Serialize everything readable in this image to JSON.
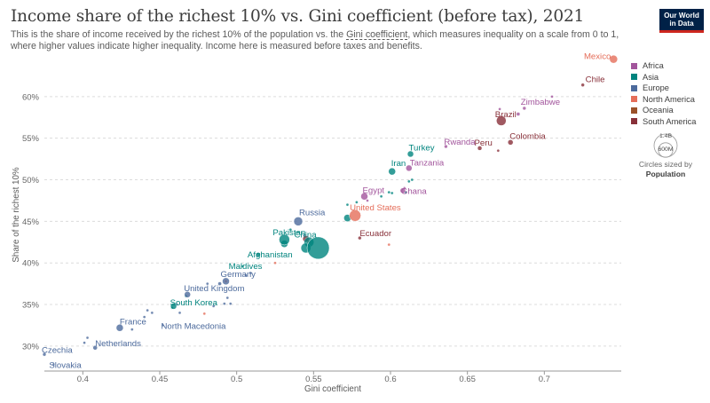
{
  "header": {
    "title": "Income share of the richest 10% vs. Gini coefficient (before tax), 2021",
    "subtitle_1": "This is the share of income received by the richest 10% of the population vs. the ",
    "subtitle_link": "Gini coefficient",
    "subtitle_2": ", which measures inequality on a scale from 0 to 1, where higher values indicate higher inequality. Income here is measured before taxes and benefits."
  },
  "logo": {
    "line1": "Our World",
    "line2": "in Data"
  },
  "legend": {
    "items": [
      {
        "label": "Africa",
        "color": "#a2559c"
      },
      {
        "label": "Asia",
        "color": "#00847e"
      },
      {
        "label": "Europe",
        "color": "#4c6a9c"
      },
      {
        "label": "North America",
        "color": "#e56e5a"
      },
      {
        "label": "Oceania",
        "color": "#9a5129"
      },
      {
        "label": "South America",
        "color": "#883039"
      }
    ],
    "size_big": "1.4B",
    "size_small": "600M",
    "size_note": "Circles sized by",
    "size_var": "Population"
  },
  "chart_data": {
    "type": "scatter",
    "xlabel": "Gini coefficient",
    "ylabel": "Share of the richest 10%",
    "xlim": [
      0.375,
      0.75
    ],
    "ylim": [
      27,
      65
    ],
    "x_ticks": [
      0.4,
      0.45,
      0.5,
      0.55,
      0.6,
      0.65,
      0.7
    ],
    "x_tick_labels": [
      "0.4",
      "0.45",
      "0.5",
      "0.55",
      "0.6",
      "0.65",
      "0.7"
    ],
    "y_ticks": [
      30,
      35,
      40,
      45,
      50,
      55,
      60
    ],
    "y_tick_labels": [
      "30%",
      "35%",
      "40%",
      "45%",
      "50%",
      "55%",
      "60%"
    ],
    "grid": "horizontal-dashed",
    "legend_placement": "right",
    "colors": {
      "Africa": "#a2559c",
      "Asia": "#00847e",
      "Europe": "#4c6a9c",
      "North America": "#e56e5a",
      "Oceania": "#9a5129",
      "South America": "#883039"
    },
    "labeled_points": [
      {
        "name": "Mexico",
        "region": "North America",
        "x": 0.745,
        "y": 64.5,
        "size": 4.5
      },
      {
        "name": "Chile",
        "region": "South America",
        "x": 0.725,
        "y": 61.4,
        "size": 2
      },
      {
        "name": "Zimbabwe",
        "region": "Africa",
        "x": 0.687,
        "y": 58.6,
        "size": 2
      },
      {
        "name": "Brazil",
        "region": "South America",
        "x": 0.672,
        "y": 57.1,
        "size": 5.5
      },
      {
        "name": "Colombia",
        "region": "South America",
        "x": 0.678,
        "y": 54.5,
        "size": 3
      },
      {
        "name": "Peru",
        "region": "South America",
        "x": 0.658,
        "y": 53.8,
        "size": 2.5
      },
      {
        "name": "Rwanda",
        "region": "Africa",
        "x": 0.636,
        "y": 54.0,
        "size": 2
      },
      {
        "name": "Turkey",
        "region": "Asia",
        "x": 0.613,
        "y": 53.1,
        "size": 3.5
      },
      {
        "name": "Tanzania",
        "region": "Africa",
        "x": 0.612,
        "y": 51.4,
        "size": 3.5
      },
      {
        "name": "Iran",
        "region": "Asia",
        "x": 0.601,
        "y": 51.0,
        "size": 4
      },
      {
        "name": "Ghana",
        "region": "Africa",
        "x": 0.608,
        "y": 48.7,
        "size": 3
      },
      {
        "name": "Egypt",
        "region": "Africa",
        "x": 0.583,
        "y": 48.0,
        "size": 4
      },
      {
        "name": "United States",
        "region": "North America",
        "x": 0.577,
        "y": 45.7,
        "size": 6.5
      },
      {
        "name": "Russia",
        "region": "Europe",
        "x": 0.54,
        "y": 45.0,
        "size": 5
      },
      {
        "name": "Ecuador",
        "region": "South America",
        "x": 0.58,
        "y": 43.0,
        "size": 2
      },
      {
        "name": "China",
        "region": "Asia",
        "x": 0.553,
        "y": 41.8,
        "size": 12.5
      },
      {
        "name": "Pakistan",
        "region": "Asia",
        "x": 0.531,
        "y": 42.8,
        "size": 6
      },
      {
        "name": "Afghanistan",
        "region": "Asia",
        "x": 0.514,
        "y": 41.0,
        "size": 2.5
      },
      {
        "name": "Maldives",
        "region": "Asia",
        "x": 0.504,
        "y": 39.6,
        "size": 1.5
      },
      {
        "name": "Germany",
        "region": "Europe",
        "x": 0.493,
        "y": 37.8,
        "size": 4
      },
      {
        "name": "United Kingdom",
        "region": "Europe",
        "x": 0.468,
        "y": 36.2,
        "size": 3.5
      },
      {
        "name": "South Korea",
        "region": "Asia",
        "x": 0.459,
        "y": 34.8,
        "size": 3.5
      },
      {
        "name": "North Macedonia",
        "region": "Europe",
        "x": 0.452,
        "y": 32.5,
        "size": 1.5
      },
      {
        "name": "France",
        "region": "Europe",
        "x": 0.424,
        "y": 32.2,
        "size": 4
      },
      {
        "name": "Netherlands",
        "region": "Europe",
        "x": 0.408,
        "y": 29.8,
        "size": 2.5
      },
      {
        "name": "Czechia",
        "region": "Europe",
        "x": 0.375,
        "y": 29.0,
        "size": 2
      },
      {
        "name": "Slovakia",
        "region": "Europe",
        "x": 0.381,
        "y": 27.8,
        "size": 1.5
      }
    ],
    "unlabeled_points": [
      {
        "region": "Europe",
        "x": 0.403,
        "y": 31.0,
        "size": 1.5
      },
      {
        "region": "Europe",
        "x": 0.401,
        "y": 30.4,
        "size": 1.5
      },
      {
        "region": "Europe",
        "x": 0.432,
        "y": 32.0,
        "size": 1.5
      },
      {
        "region": "Europe",
        "x": 0.44,
        "y": 33.5,
        "size": 1.5
      },
      {
        "region": "Europe",
        "x": 0.442,
        "y": 34.3,
        "size": 1.5
      },
      {
        "region": "Europe",
        "x": 0.445,
        "y": 34.0,
        "size": 1.5
      },
      {
        "region": "Europe",
        "x": 0.461,
        "y": 35.0,
        "size": 1.5
      },
      {
        "region": "Europe",
        "x": 0.463,
        "y": 34.0,
        "size": 1.5
      },
      {
        "region": "Europe",
        "x": 0.481,
        "y": 37.5,
        "size": 1.5
      },
      {
        "region": "Europe",
        "x": 0.485,
        "y": 34.8,
        "size": 1.5
      },
      {
        "region": "Europe",
        "x": 0.489,
        "y": 37.5,
        "size": 2
      },
      {
        "region": "Europe",
        "x": 0.492,
        "y": 35.1,
        "size": 1.5
      },
      {
        "region": "Europe",
        "x": 0.494,
        "y": 35.8,
        "size": 1.5
      },
      {
        "region": "Europe",
        "x": 0.496,
        "y": 35.1,
        "size": 1.5
      },
      {
        "region": "Europe",
        "x": 0.506,
        "y": 38.5,
        "size": 1.5
      },
      {
        "region": "Europe",
        "x": 0.509,
        "y": 38.8,
        "size": 1.5
      },
      {
        "region": "Europe",
        "x": 0.544,
        "y": 43.3,
        "size": 1.5
      },
      {
        "region": "North America",
        "x": 0.479,
        "y": 33.9,
        "size": 1.5
      },
      {
        "region": "North America",
        "x": 0.493,
        "y": 37.8,
        "size": 1.5
      },
      {
        "region": "North America",
        "x": 0.525,
        "y": 40.0,
        "size": 1.5
      },
      {
        "region": "North America",
        "x": 0.599,
        "y": 42.2,
        "size": 1.5
      },
      {
        "region": "North America",
        "x": 0.547,
        "y": 42.5,
        "size": 2
      },
      {
        "region": "South America",
        "x": 0.545,
        "y": 42.9,
        "size": 3.5
      },
      {
        "region": "Asia",
        "x": 0.547,
        "y": 42.5,
        "size": 5.5
      },
      {
        "region": "Asia",
        "x": 0.545,
        "y": 41.8,
        "size": 5.5
      },
      {
        "region": "Asia",
        "x": 0.531,
        "y": 42.3,
        "size": 4
      },
      {
        "region": "Asia",
        "x": 0.535,
        "y": 44.0,
        "size": 1.5
      },
      {
        "region": "Asia",
        "x": 0.572,
        "y": 45.4,
        "size": 4
      },
      {
        "region": "Asia",
        "x": 0.572,
        "y": 47.0,
        "size": 1.5
      },
      {
        "region": "Asia",
        "x": 0.578,
        "y": 47.3,
        "size": 1.5
      },
      {
        "region": "Asia",
        "x": 0.599,
        "y": 48.5,
        "size": 1.5
      },
      {
        "region": "Asia",
        "x": 0.594,
        "y": 48.0,
        "size": 1.5
      },
      {
        "region": "Asia",
        "x": 0.601,
        "y": 48.4,
        "size": 1.5
      },
      {
        "region": "Asia",
        "x": 0.61,
        "y": 48.5,
        "size": 1.5
      },
      {
        "region": "Asia",
        "x": 0.612,
        "y": 49.8,
        "size": 1.5
      },
      {
        "region": "Asia",
        "x": 0.614,
        "y": 50.0,
        "size": 1.5
      },
      {
        "region": "Asia",
        "x": 0.458,
        "y": 34.6,
        "size": 1.5
      },
      {
        "region": "Asia",
        "x": 0.467,
        "y": 36.0,
        "size": 1.5
      },
      {
        "region": "Africa",
        "x": 0.585,
        "y": 47.5,
        "size": 1.5
      },
      {
        "region": "Africa",
        "x": 0.609,
        "y": 49.0,
        "size": 1.5
      },
      {
        "region": "Africa",
        "x": 0.671,
        "y": 58.5,
        "size": 1.5
      },
      {
        "region": "Africa",
        "x": 0.683,
        "y": 57.9,
        "size": 2
      },
      {
        "region": "Africa",
        "x": 0.705,
        "y": 60.0,
        "size": 1.5
      },
      {
        "region": "South America",
        "x": 0.67,
        "y": 53.5,
        "size": 1.5
      }
    ]
  }
}
